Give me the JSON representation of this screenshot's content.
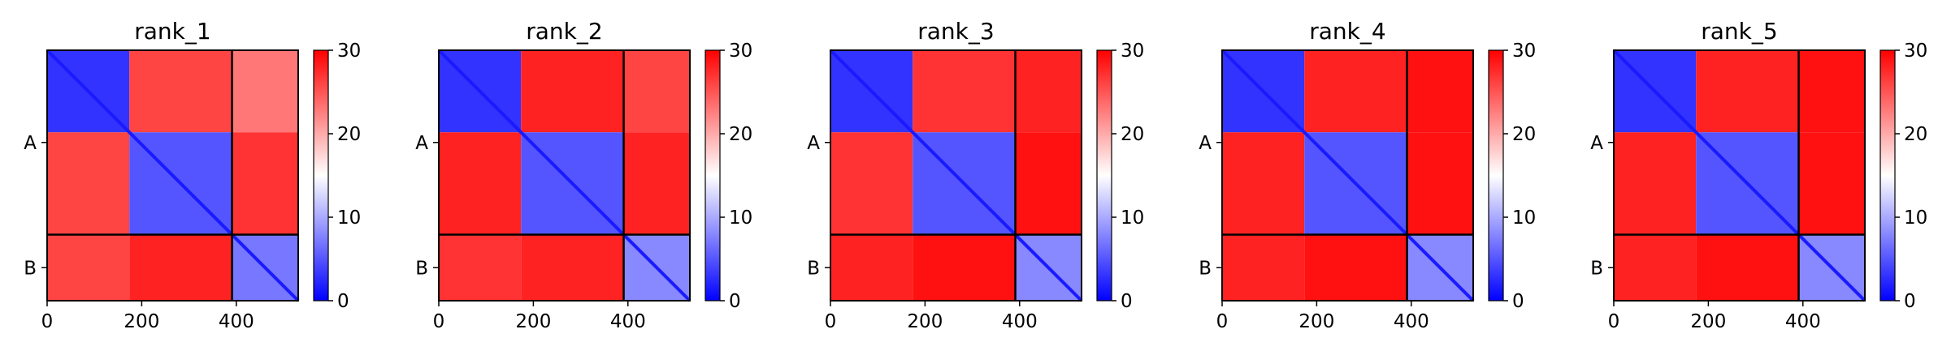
{
  "chart_data": [
    {
      "type": "heatmap",
      "title": "rank_1",
      "x_ticks": [
        "0",
        "200",
        "400"
      ],
      "x_tick_values": [
        0,
        200,
        400
      ],
      "xlim": [
        0,
        531
      ],
      "ylim": [
        0,
        531
      ],
      "chain_boundary": 391,
      "chain_labels": [
        "A",
        "B"
      ],
      "chain_label_centers": [
        195.5,
        461
      ],
      "blocks": [
        [
          0,
          174
        ],
        [
          174,
          391
        ],
        [
          391,
          531
        ]
      ],
      "colorbar": {
        "ticks": [
          "0",
          "10",
          "20",
          "30"
        ],
        "range": [
          0,
          30
        ],
        "colors": [
          "#0000ff",
          "#ffffff",
          "#ff0000"
        ]
      },
      "pae_means": [
        [
          3,
          26,
          23
        ],
        [
          26,
          5,
          27
        ],
        [
          26,
          28,
          7
        ]
      ]
    },
    {
      "type": "heatmap",
      "title": "rank_2",
      "x_ticks": [
        "0",
        "200",
        "400"
      ],
      "x_tick_values": [
        0,
        200,
        400
      ],
      "xlim": [
        0,
        531
      ],
      "ylim": [
        0,
        531
      ],
      "chain_boundary": 391,
      "chain_labels": [
        "A",
        "B"
      ],
      "chain_label_centers": [
        195.5,
        461
      ],
      "blocks": [
        [
          0,
          174
        ],
        [
          174,
          391
        ],
        [
          391,
          531
        ]
      ],
      "colorbar": {
        "ticks": [
          "0",
          "10",
          "20",
          "30"
        ],
        "range": [
          0,
          30
        ],
        "colors": [
          "#0000ff",
          "#ffffff",
          "#ff0000"
        ]
      },
      "pae_means": [
        [
          3,
          28,
          26
        ],
        [
          28,
          5,
          28
        ],
        [
          27,
          28,
          8
        ]
      ]
    },
    {
      "type": "heatmap",
      "title": "rank_3",
      "x_ticks": [
        "0",
        "200",
        "400"
      ],
      "x_tick_values": [
        0,
        200,
        400
      ],
      "xlim": [
        0,
        531
      ],
      "ylim": [
        0,
        531
      ],
      "chain_boundary": 391,
      "chain_labels": [
        "A",
        "B"
      ],
      "chain_label_centers": [
        195.5,
        461
      ],
      "blocks": [
        [
          0,
          174
        ],
        [
          174,
          391
        ],
        [
          391,
          531
        ]
      ],
      "colorbar": {
        "ticks": [
          "0",
          "10",
          "20",
          "30"
        ],
        "range": [
          0,
          30
        ],
        "colors": [
          "#0000ff",
          "#ffffff",
          "#ff0000"
        ]
      },
      "pae_means": [
        [
          3,
          27,
          28
        ],
        [
          27,
          5,
          29
        ],
        [
          28,
          29,
          8
        ]
      ]
    },
    {
      "type": "heatmap",
      "title": "rank_4",
      "x_ticks": [
        "0",
        "200",
        "400"
      ],
      "x_tick_values": [
        0,
        200,
        400
      ],
      "xlim": [
        0,
        531
      ],
      "ylim": [
        0,
        531
      ],
      "chain_boundary": 391,
      "chain_labels": [
        "A",
        "B"
      ],
      "chain_label_centers": [
        195.5,
        461
      ],
      "blocks": [
        [
          0,
          174
        ],
        [
          174,
          391
        ],
        [
          391,
          531
        ]
      ],
      "colorbar": {
        "ticks": [
          "0",
          "10",
          "20",
          "30"
        ],
        "range": [
          0,
          30
        ],
        "colors": [
          "#0000ff",
          "#ffffff",
          "#ff0000"
        ]
      },
      "pae_means": [
        [
          3,
          28,
          29
        ],
        [
          28,
          5,
          29
        ],
        [
          28,
          29,
          8
        ]
      ]
    },
    {
      "type": "heatmap",
      "title": "rank_5",
      "x_ticks": [
        "0",
        "200",
        "400"
      ],
      "x_tick_values": [
        0,
        200,
        400
      ],
      "xlim": [
        0,
        531
      ],
      "ylim": [
        0,
        531
      ],
      "chain_boundary": 391,
      "chain_labels": [
        "A",
        "B"
      ],
      "chain_label_centers": [
        195.5,
        461
      ],
      "blocks": [
        [
          0,
          174
        ],
        [
          174,
          391
        ],
        [
          391,
          531
        ]
      ],
      "colorbar": {
        "ticks": [
          "0",
          "10",
          "20",
          "30"
        ],
        "range": [
          0,
          30
        ],
        "colors": [
          "#0000ff",
          "#ffffff",
          "#ff0000"
        ]
      },
      "pae_means": [
        [
          3,
          28,
          29
        ],
        [
          28,
          5,
          29
        ],
        [
          28,
          29,
          8
        ]
      ]
    }
  ]
}
